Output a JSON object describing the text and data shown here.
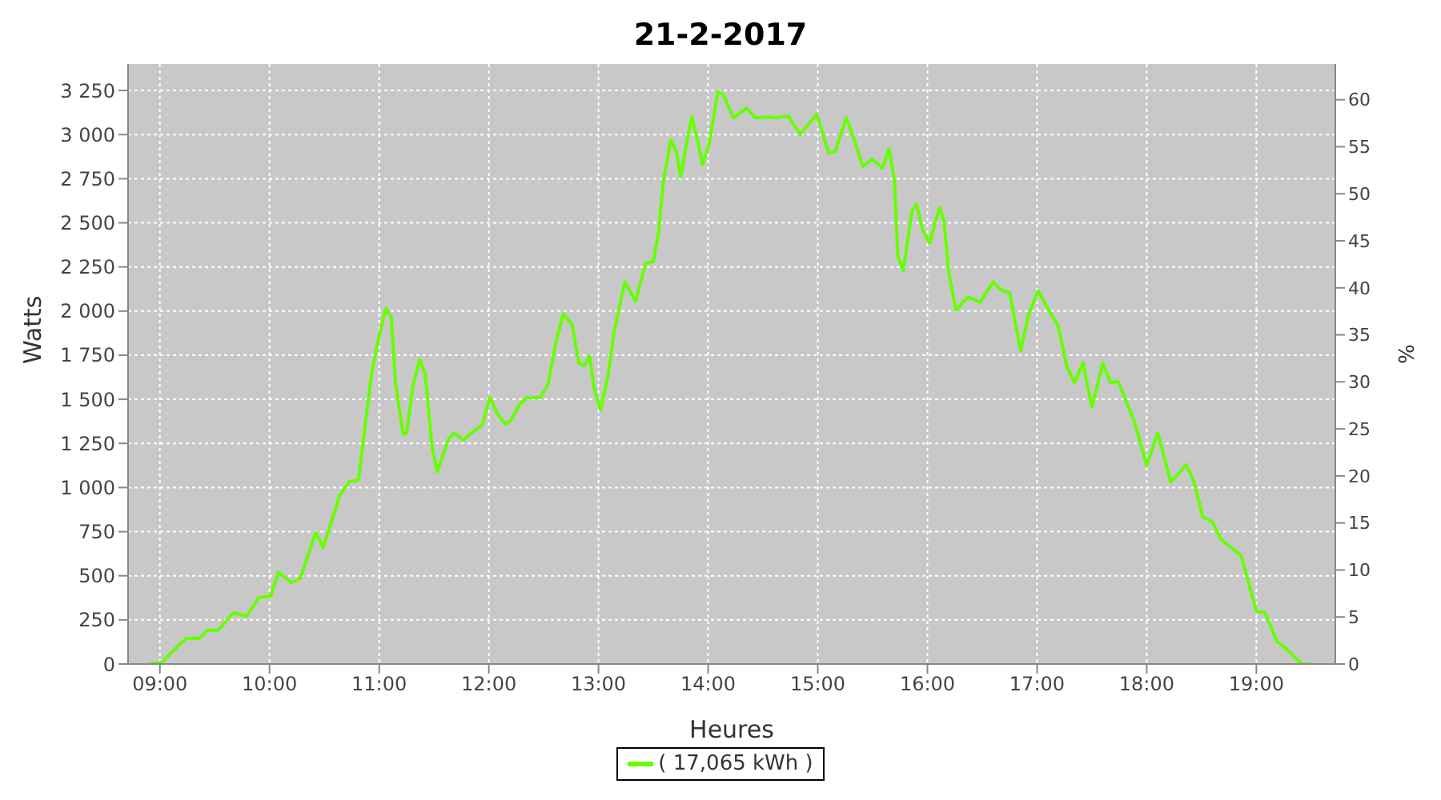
{
  "chart_data": {
    "type": "line",
    "title": "21-2-2017",
    "xlabel": "Heures",
    "ylabel": "Watts",
    "y2label": "%",
    "x": [
      8.9,
      9.02,
      9.12,
      9.24,
      9.36,
      9.43,
      9.53,
      9.67,
      9.79,
      9.9,
      10.01,
      10.08,
      10.2,
      10.28,
      10.42,
      10.49,
      10.64,
      10.73,
      10.81,
      10.85,
      10.93,
      11.0,
      11.06,
      11.11,
      11.15,
      11.22,
      11.25,
      11.31,
      11.37,
      11.42,
      11.48,
      11.53,
      11.63,
      11.68,
      11.77,
      11.84,
      11.94,
      12.01,
      12.08,
      12.15,
      12.2,
      12.28,
      12.35,
      12.47,
      12.54,
      12.61,
      12.68,
      12.76,
      12.82,
      12.87,
      12.92,
      12.96,
      13.02,
      13.09,
      13.14,
      13.24,
      13.34,
      13.43,
      13.5,
      13.55,
      13.59,
      13.66,
      13.71,
      13.75,
      13.79,
      13.85,
      13.9,
      13.95,
      14.01,
      14.09,
      14.14,
      14.23,
      14.35,
      14.43,
      14.54,
      14.61,
      14.73,
      14.84,
      14.99,
      15.1,
      15.16,
      15.26,
      15.33,
      15.41,
      15.5,
      15.59,
      15.65,
      15.7,
      15.73,
      15.78,
      15.86,
      15.9,
      15.96,
      16.02,
      16.11,
      16.15,
      16.2,
      16.26,
      16.37,
      16.48,
      16.6,
      16.68,
      16.75,
      16.85,
      16.92,
      17.01,
      17.12,
      17.19,
      17.27,
      17.34,
      17.42,
      17.5,
      17.6,
      17.67,
      17.74,
      17.89,
      18.0,
      18.1,
      18.22,
      18.36,
      18.43,
      18.51,
      18.6,
      18.68,
      18.8,
      18.86,
      19.0,
      19.08,
      19.19,
      19.26,
      19.33,
      19.42,
      19.5
    ],
    "series": [
      {
        "name": "( 17,065 kWh )",
        "color": "#66ff00",
        "values": [
          0,
          10,
          75,
          145,
          145,
          190,
          190,
          290,
          270,
          375,
          385,
          520,
          460,
          485,
          745,
          660,
          955,
          1035,
          1040,
          1240,
          1645,
          1860,
          2015,
          1965,
          1585,
          1300,
          1310,
          1585,
          1725,
          1645,
          1240,
          1090,
          1270,
          1310,
          1270,
          1310,
          1355,
          1510,
          1415,
          1360,
          1380,
          1470,
          1510,
          1510,
          1585,
          1820,
          1985,
          1920,
          1705,
          1690,
          1745,
          1560,
          1440,
          1645,
          1875,
          2165,
          2055,
          2270,
          2280,
          2455,
          2730,
          2970,
          2905,
          2760,
          2905,
          3100,
          2975,
          2830,
          2950,
          3245,
          3225,
          3095,
          3150,
          3095,
          3100,
          3095,
          3105,
          3000,
          3115,
          2895,
          2905,
          3095,
          2975,
          2820,
          2860,
          2810,
          2920,
          2730,
          2310,
          2230,
          2570,
          2605,
          2455,
          2385,
          2585,
          2515,
          2195,
          2005,
          2080,
          2050,
          2165,
          2115,
          2105,
          1775,
          1975,
          2115,
          1990,
          1920,
          1690,
          1595,
          1705,
          1455,
          1705,
          1595,
          1600,
          1370,
          1125,
          1310,
          1030,
          1130,
          1035,
          835,
          805,
          705,
          645,
          615,
          300,
          290,
          125,
          95,
          50,
          0,
          0
        ]
      }
    ],
    "xlim": [
      8.71,
      19.72
    ],
    "xticks": [
      {
        "value": 9,
        "label": "09:00"
      },
      {
        "value": 10,
        "label": "10:00"
      },
      {
        "value": 11,
        "label": "11:00"
      },
      {
        "value": 12,
        "label": "12:00"
      },
      {
        "value": 13,
        "label": "13:00"
      },
      {
        "value": 14,
        "label": "14:00"
      },
      {
        "value": 15,
        "label": "15:00"
      },
      {
        "value": 16,
        "label": "16:00"
      },
      {
        "value": 17,
        "label": "17:00"
      },
      {
        "value": 18,
        "label": "18:00"
      },
      {
        "value": 19,
        "label": "19:00"
      }
    ],
    "ylim": [
      0,
      3400
    ],
    "yticks": [
      0,
      250,
      500,
      750,
      {
        "value": 1000,
        "label": "1 000"
      },
      {
        "value": 1250,
        "label": "1 250"
      },
      {
        "value": 1500,
        "label": "1 500"
      },
      {
        "value": 1750,
        "label": "1 750"
      },
      {
        "value": 2000,
        "label": "2 000"
      },
      {
        "value": 2250,
        "label": "2 250"
      },
      {
        "value": 2500,
        "label": "2 500"
      },
      {
        "value": 2750,
        "label": "2 750"
      },
      {
        "value": 3000,
        "label": "3 000"
      },
      {
        "value": 3250,
        "label": "3 250"
      }
    ],
    "y2lim": [
      0,
      63.8
    ],
    "y2ticks": [
      0,
      5,
      10,
      15,
      20,
      25,
      30,
      35,
      40,
      45,
      50,
      55,
      60
    ],
    "grid": true,
    "legend": "bottom",
    "marker": "none",
    "line_style": "solid"
  }
}
